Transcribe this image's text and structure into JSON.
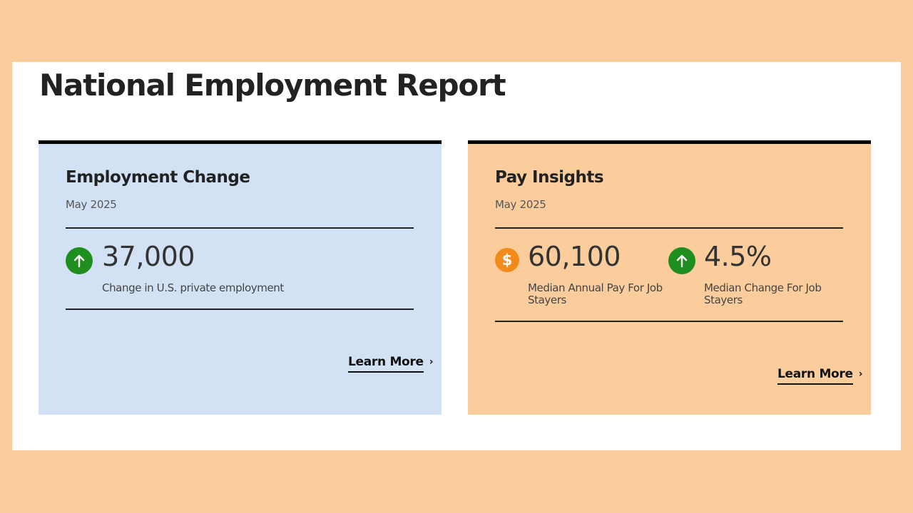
{
  "page": {
    "title": "National Employment Report"
  },
  "cards": {
    "employment": {
      "title": "Employment Change",
      "date": "May 2025",
      "stat": {
        "icon": "arrow-up-icon",
        "value": "37,000",
        "label": "Change in U.S. private employment"
      },
      "link_label": "Learn More",
      "background": "#D2E2F4"
    },
    "pay": {
      "title": "Pay Insights",
      "date": "May 2025",
      "stats": [
        {
          "icon": "dollar-icon",
          "icon_glyph": "$",
          "value": "60,100",
          "label": "Median Annual Pay For Job Stayers"
        },
        {
          "icon": "arrow-up-icon",
          "value": "4.5%",
          "label": "Median Change For Job Stayers"
        }
      ],
      "link_label": "Learn More",
      "background": "#FBCD9D"
    }
  },
  "colors": {
    "page_background": "#FBCD9D",
    "positive_icon": "#1E8E1E",
    "dollar_icon": "#F28A1C",
    "rule": "#222222"
  },
  "icons": {
    "link_chevron": "›"
  }
}
